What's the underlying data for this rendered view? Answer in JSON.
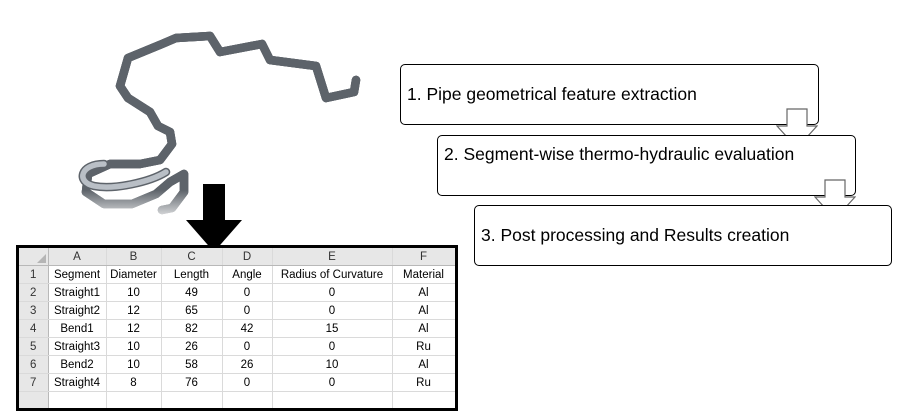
{
  "spreadsheet": {
    "column_letters": [
      "A",
      "B",
      "C",
      "D",
      "E",
      "F"
    ],
    "rows": [
      {
        "num": "1",
        "cells": [
          "Segment",
          "Diameter",
          "Length",
          "Angle",
          "Radius of Curvature",
          "Material"
        ]
      },
      {
        "num": "2",
        "cells": [
          "Straight1",
          "10",
          "49",
          "0",
          "0",
          "Al"
        ]
      },
      {
        "num": "3",
        "cells": [
          "Straight2",
          "12",
          "65",
          "0",
          "0",
          "Al"
        ]
      },
      {
        "num": "4",
        "cells": [
          "Bend1",
          "12",
          "82",
          "42",
          "15",
          "Al"
        ]
      },
      {
        "num": "5",
        "cells": [
          "Straight3",
          "10",
          "26",
          "0",
          "0",
          "Ru"
        ]
      },
      {
        "num": "6",
        "cells": [
          "Bend2",
          "10",
          "58",
          "26",
          "10",
          "Al"
        ]
      },
      {
        "num": "7",
        "cells": [
          "Straight4",
          "8",
          "76",
          "0",
          "0",
          "Ru"
        ]
      },
      {
        "num": "",
        "cells": [
          "",
          "",
          "",
          "",
          "",
          ""
        ]
      }
    ]
  },
  "steps": {
    "step1": "1. Pipe geometrical feature extraction",
    "step2": "2. Segment-wise thermo-hydraulic evaluation",
    "step3": "3. Post processing and Results creation"
  },
  "colors": {
    "pipe_fill": "#b9bfc6",
    "pipe_outline": "#5d636a",
    "box_border": "#000000",
    "sheet_header": "#e7e7e7"
  },
  "icons": [
    "pipe-3d-model",
    "down-arrow",
    "flow-arrow"
  ]
}
